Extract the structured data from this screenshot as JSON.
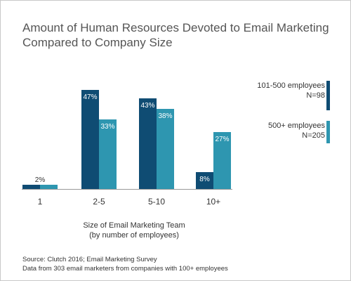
{
  "title_lines": [
    "Amount of Human Resources Devoted to Email Marketing",
    "Compared to Company Size"
  ],
  "xlabel_lines": [
    "Size of Email Marketing Team",
    "(by number of employees)"
  ],
  "legend": [
    {
      "line1": "101-500 employees",
      "line2": "N=98",
      "color": "#0f4c73"
    },
    {
      "line1": "500+ employees",
      "line2": "N=205",
      "color": "#2e96b0"
    }
  ],
  "source_lines": [
    "Source: Clutch 2016; Email Marketing Survey",
    "Data from 303 email marketers from companies with 100+ employees"
  ],
  "colors": {
    "series1": "#0f4c73",
    "series2": "#2e96b0",
    "axis": "#999999",
    "text": "#333333"
  },
  "chart_data": {
    "type": "bar",
    "categories": [
      "1",
      "2-5",
      "5-10",
      "10+"
    ],
    "series": [
      {
        "name": "101-500 employees",
        "values": [
          2,
          47,
          43,
          8
        ],
        "labels": [
          "",
          "47%",
          "43%",
          "8%"
        ]
      },
      {
        "name": "500+ employees",
        "values": [
          2,
          33,
          38,
          27
        ],
        "labels": [
          "",
          "33%",
          "38%",
          "27%"
        ]
      }
    ],
    "shared_labels": [
      "2%",
      "",
      "",
      ""
    ],
    "xlabel": "Size of Email Marketing Team (by number of employees)",
    "ylabel": "",
    "ylim": [
      0,
      50
    ],
    "grid": false,
    "legend_position": "right"
  }
}
